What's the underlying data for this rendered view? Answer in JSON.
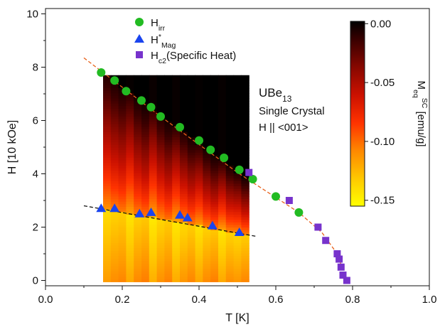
{
  "chart_data": {
    "type": "scatter",
    "xlabel": "T [K]",
    "ylabel": "H [10 kOe]",
    "xlim": [
      0.0,
      1.0
    ],
    "ylim": [
      -0.2,
      10.2
    ],
    "x_ticks": [
      "0.0",
      "0.2",
      "0.4",
      "0.6",
      "0.8",
      "1.0"
    ],
    "y_ticks": [
      "0",
      "2",
      "4",
      "6",
      "8",
      "10"
    ],
    "legend_position": "top-center",
    "series": [
      {
        "name_parts": [
          [
            "H",
            ""
          ],
          [
            "irr",
            "sub"
          ]
        ],
        "marker": "circle",
        "color": "#22bb22",
        "x": [
          0.145,
          0.18,
          0.21,
          0.25,
          0.275,
          0.3,
          0.35,
          0.4,
          0.43,
          0.465,
          0.505,
          0.54,
          0.6,
          0.66
        ],
        "y": [
          7.8,
          7.5,
          7.1,
          6.75,
          6.5,
          6.15,
          5.75,
          5.25,
          4.9,
          4.6,
          4.15,
          3.8,
          3.15,
          2.55
        ]
      },
      {
        "name_parts": [
          [
            "H",
            ""
          ],
          [
            "*",
            "sup"
          ],
          [
            "Mag",
            "sub"
          ]
        ],
        "marker": "triangle",
        "color": "#1a44ee",
        "x": [
          0.145,
          0.18,
          0.245,
          0.275,
          0.35,
          0.37,
          0.435,
          0.505
        ],
        "y": [
          2.7,
          2.7,
          2.5,
          2.55,
          2.45,
          2.35,
          2.05,
          1.8
        ]
      },
      {
        "name_parts": [
          [
            "H",
            ""
          ],
          [
            "c2",
            "sub"
          ],
          [
            "(Specific Heat)",
            ""
          ]
        ],
        "marker": "square",
        "color": "#7733cc",
        "x": [
          0.53,
          0.635,
          0.71,
          0.73,
          0.76,
          0.765,
          0.77,
          0.775,
          0.785
        ],
        "y": [
          4.05,
          3.0,
          2.0,
          1.5,
          1.0,
          0.8,
          0.5,
          0.2,
          0.0
        ]
      }
    ],
    "fit_lines": [
      {
        "color": "#e8601a",
        "x": [
          0.1,
          0.3,
          0.5,
          0.66,
          0.72,
          0.76,
          0.785
        ],
        "y": [
          8.35,
          6.15,
          4.05,
          2.55,
          1.8,
          1.0,
          0.0
        ]
      },
      {
        "color": "#111111",
        "x": [
          0.1,
          0.55
        ],
        "y": [
          2.8,
          1.65
        ]
      }
    ],
    "annotation": {
      "line1_parts": [
        [
          "UBe",
          ""
        ],
        [
          "13",
          "sub"
        ]
      ],
      "line2": "Single Crystal",
      "line3": "H || <001>"
    },
    "colorbar": {
      "ticks": [
        "0.00",
        "-0.05",
        "-0.10",
        "-0.15"
      ],
      "tick_values": [
        0.0,
        -0.05,
        -0.1,
        -0.15
      ],
      "range": [
        -0.155,
        0.002
      ],
      "label_parts": [
        [
          "M",
          ""
        ],
        [
          "eq",
          "sub"
        ],
        [
          "SC",
          "sup"
        ],
        [
          " [emu/g]",
          ""
        ]
      ],
      "colormap": [
        "#ffff00",
        "#ffcc00",
        "#ff8800",
        "#ff3300",
        "#cc1100",
        "#880800",
        "#3a0000",
        "#000000"
      ]
    },
    "heatmap": {
      "x_range": [
        0.15,
        0.53
      ],
      "y_range": [
        -0.05,
        7.7
      ],
      "colorscale_stops": [
        0.0,
        0.12,
        0.25,
        0.4,
        0.55,
        0.7,
        0.85,
        1.0
      ]
    }
  }
}
